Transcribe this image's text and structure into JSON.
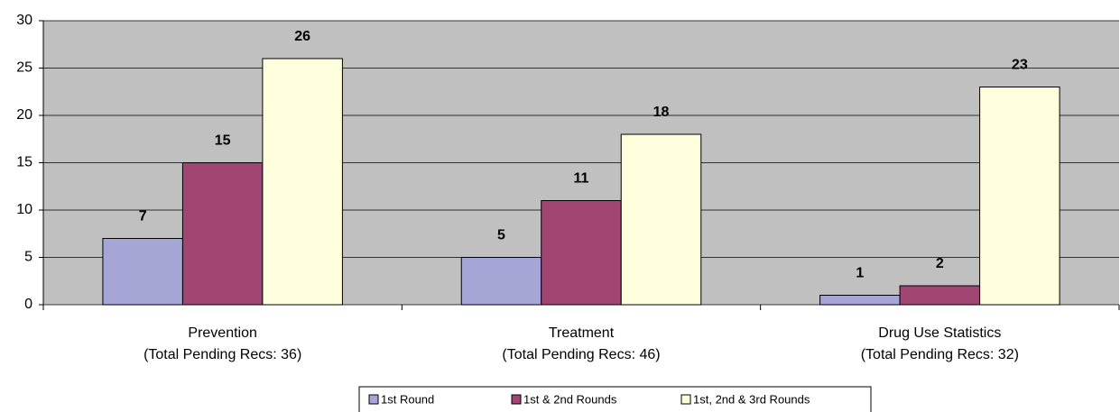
{
  "chart_data": {
    "type": "bar",
    "categories": [
      [
        "Prevention",
        "(Total Pending Recs: 36)"
      ],
      [
        "Treatment",
        "(Total Pending Recs: 46)"
      ],
      [
        "Drug Use Statistics",
        "(Total Pending Recs: 32)"
      ]
    ],
    "series": [
      {
        "name": "1st Round",
        "color": "#a6a6d6",
        "values": [
          7,
          5,
          1
        ]
      },
      {
        "name": "1st & 2nd Rounds",
        "color": "#a14673",
        "values": [
          15,
          11,
          2
        ]
      },
      {
        "name": "1st, 2nd & 3rd Rounds",
        "color": "#ffffdd",
        "values": [
          26,
          18,
          23
        ]
      }
    ],
    "ylim": [
      0,
      30
    ],
    "yticks": [
      0,
      5,
      10,
      15,
      20,
      25,
      30
    ],
    "grid": true,
    "legend": "bottom"
  }
}
